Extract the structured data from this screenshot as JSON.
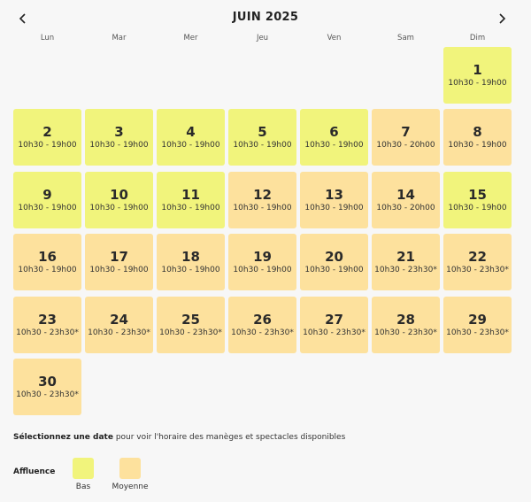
{
  "header": {
    "title": "JUIN 2025",
    "prev_icon": "chevron-left-icon",
    "next_icon": "chevron-right-icon"
  },
  "weekdays": [
    "Lun",
    "Mar",
    "Mer",
    "Jeu",
    "Ven",
    "Sam",
    "Dim"
  ],
  "colors": {
    "low": "#f1f47c",
    "medium": "#fde19d",
    "background": "#f7f7f7"
  },
  "days": [
    {
      "day": "1",
      "hours": "10h30 - 19h00",
      "level": "low",
      "col": 6,
      "row": 0
    },
    {
      "day": "2",
      "hours": "10h30 - 19h00",
      "level": "low",
      "col": 0,
      "row": 1
    },
    {
      "day": "3",
      "hours": "10h30 - 19h00",
      "level": "low",
      "col": 1,
      "row": 1
    },
    {
      "day": "4",
      "hours": "10h30 - 19h00",
      "level": "low",
      "col": 2,
      "row": 1
    },
    {
      "day": "5",
      "hours": "10h30 - 19h00",
      "level": "low",
      "col": 3,
      "row": 1
    },
    {
      "day": "6",
      "hours": "10h30 - 19h00",
      "level": "low",
      "col": 4,
      "row": 1
    },
    {
      "day": "7",
      "hours": "10h30 - 20h00",
      "level": "med",
      "col": 5,
      "row": 1
    },
    {
      "day": "8",
      "hours": "10h30 - 19h00",
      "level": "med",
      "col": 6,
      "row": 1
    },
    {
      "day": "9",
      "hours": "10h30 - 19h00",
      "level": "low",
      "col": 0,
      "row": 2
    },
    {
      "day": "10",
      "hours": "10h30 - 19h00",
      "level": "low",
      "col": 1,
      "row": 2
    },
    {
      "day": "11",
      "hours": "10h30 - 19h00",
      "level": "low",
      "col": 2,
      "row": 2
    },
    {
      "day": "12",
      "hours": "10h30 - 19h00",
      "level": "med",
      "col": 3,
      "row": 2
    },
    {
      "day": "13",
      "hours": "10h30 - 19h00",
      "level": "med",
      "col": 4,
      "row": 2
    },
    {
      "day": "14",
      "hours": "10h30 - 20h00",
      "level": "med",
      "col": 5,
      "row": 2
    },
    {
      "day": "15",
      "hours": "10h30 - 19h00",
      "level": "low",
      "col": 6,
      "row": 2
    },
    {
      "day": "16",
      "hours": "10h30 - 19h00",
      "level": "med",
      "col": 0,
      "row": 3
    },
    {
      "day": "17",
      "hours": "10h30 - 19h00",
      "level": "med",
      "col": 1,
      "row": 3
    },
    {
      "day": "18",
      "hours": "10h30 - 19h00",
      "level": "med",
      "col": 2,
      "row": 3
    },
    {
      "day": "19",
      "hours": "10h30 - 19h00",
      "level": "med",
      "col": 3,
      "row": 3
    },
    {
      "day": "20",
      "hours": "10h30 - 19h00",
      "level": "med",
      "col": 4,
      "row": 3
    },
    {
      "day": "21",
      "hours": "10h30 - 23h30*",
      "level": "med",
      "col": 5,
      "row": 3
    },
    {
      "day": "22",
      "hours": "10h30 - 23h30*",
      "level": "med",
      "col": 6,
      "row": 3
    },
    {
      "day": "23",
      "hours": "10h30 - 23h30*",
      "level": "med",
      "col": 0,
      "row": 4
    },
    {
      "day": "24",
      "hours": "10h30 - 23h30*",
      "level": "med",
      "col": 1,
      "row": 4
    },
    {
      "day": "25",
      "hours": "10h30 - 23h30*",
      "level": "med",
      "col": 2,
      "row": 4
    },
    {
      "day": "26",
      "hours": "10h30 - 23h30*",
      "level": "med",
      "col": 3,
      "row": 4
    },
    {
      "day": "27",
      "hours": "10h30 - 23h30*",
      "level": "med",
      "col": 4,
      "row": 4
    },
    {
      "day": "28",
      "hours": "10h30 - 23h30*",
      "level": "med",
      "col": 5,
      "row": 4
    },
    {
      "day": "29",
      "hours": "10h30 - 23h30*",
      "level": "med",
      "col": 6,
      "row": 4
    },
    {
      "day": "30",
      "hours": "10h30 - 23h30*",
      "level": "med",
      "col": 0,
      "row": 5
    }
  ],
  "info": {
    "bold": "Sélectionnez une date",
    "rest": " pour voir l'horaire des manèges et spectacles disponibles"
  },
  "legend": {
    "title": "Affluence",
    "items": [
      {
        "label": "Bas",
        "level": "low"
      },
      {
        "label": "Moyenne",
        "level": "med"
      }
    ]
  }
}
